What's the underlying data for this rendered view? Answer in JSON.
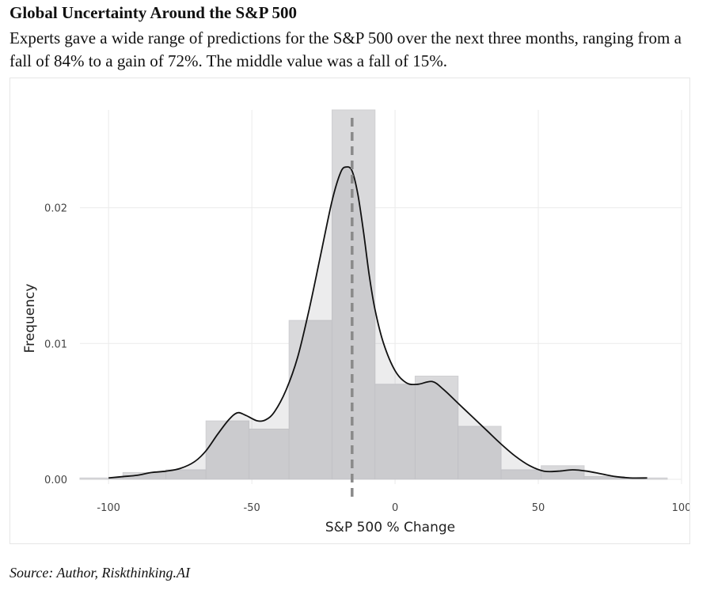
{
  "title": "Global Uncertainty Around the S&P 500",
  "subtitle": "Experts gave a wide range of predictions for the S&P 500 over the next three months, ranging from a fall of 84% to a gain of 72%. The middle value was a fall of 15%.",
  "source": "Source: Author, Riskthinking.AI",
  "chart_data": {
    "type": "bar",
    "xlabel": "S&P 500 % Change",
    "ylabel": "Frequency",
    "xlim": [
      -110,
      100
    ],
    "ylim": [
      0,
      0.0272
    ],
    "x_ticks": [
      -100,
      -50,
      0,
      50,
      100
    ],
    "x_tick_labels": [
      "-100",
      "-50",
      "0",
      "50",
      "100"
    ],
    "y_ticks": [
      0,
      0.01,
      0.02
    ],
    "y_tick_labels": [
      "0.00",
      "0.01",
      "0.02"
    ],
    "grid": true,
    "histogram": {
      "bin_edges": [
        -110,
        -95,
        -80,
        -66,
        -51,
        -37,
        -22,
        -7,
        7,
        22,
        37,
        51,
        66,
        80,
        95
      ],
      "values": [
        0.0001,
        0.0005,
        0.0007,
        0.0043,
        0.0037,
        0.0117,
        0.0272,
        0.007,
        0.0076,
        0.0039,
        0.0007,
        0.001,
        0.0002,
        0.0001
      ]
    },
    "density_line": {
      "x": [
        -100,
        -95,
        -90,
        -85,
        -80,
        -75,
        -70,
        -66,
        -62,
        -58,
        -55,
        -52,
        -48,
        -45,
        -42,
        -38,
        -34,
        -30,
        -26,
        -22,
        -19,
        -17,
        -15,
        -13,
        -11,
        -9,
        -7,
        -4,
        0,
        4,
        8,
        13,
        17,
        22,
        27,
        32,
        37,
        42,
        47,
        52,
        57,
        62,
        67,
        72,
        77,
        82,
        88
      ],
      "y": [
        0.0001,
        0.0002,
        0.0003,
        0.0005,
        0.0006,
        0.0008,
        0.0013,
        0.0021,
        0.0033,
        0.0044,
        0.0049,
        0.0047,
        0.0043,
        0.0044,
        0.005,
        0.0066,
        0.009,
        0.0125,
        0.0165,
        0.0205,
        0.0226,
        0.023,
        0.0227,
        0.021,
        0.0182,
        0.015,
        0.0125,
        0.01,
        0.008,
        0.0071,
        0.007,
        0.0072,
        0.0066,
        0.0056,
        0.0046,
        0.0036,
        0.0026,
        0.0017,
        0.001,
        0.0006,
        0.0006,
        0.0007,
        0.0006,
        0.0004,
        0.0002,
        0.0001,
        0.0001
      ]
    },
    "median_line_x": -15,
    "colors": {
      "bar_fill": "#d9d9db",
      "bar_stroke": "#cfcfd2",
      "density_fill": "rgba(120,120,125,0.14)",
      "density_line": "#111111",
      "median_line": "#8a8a8a",
      "grid": "#ebebeb",
      "axis_text": "#444444"
    }
  }
}
